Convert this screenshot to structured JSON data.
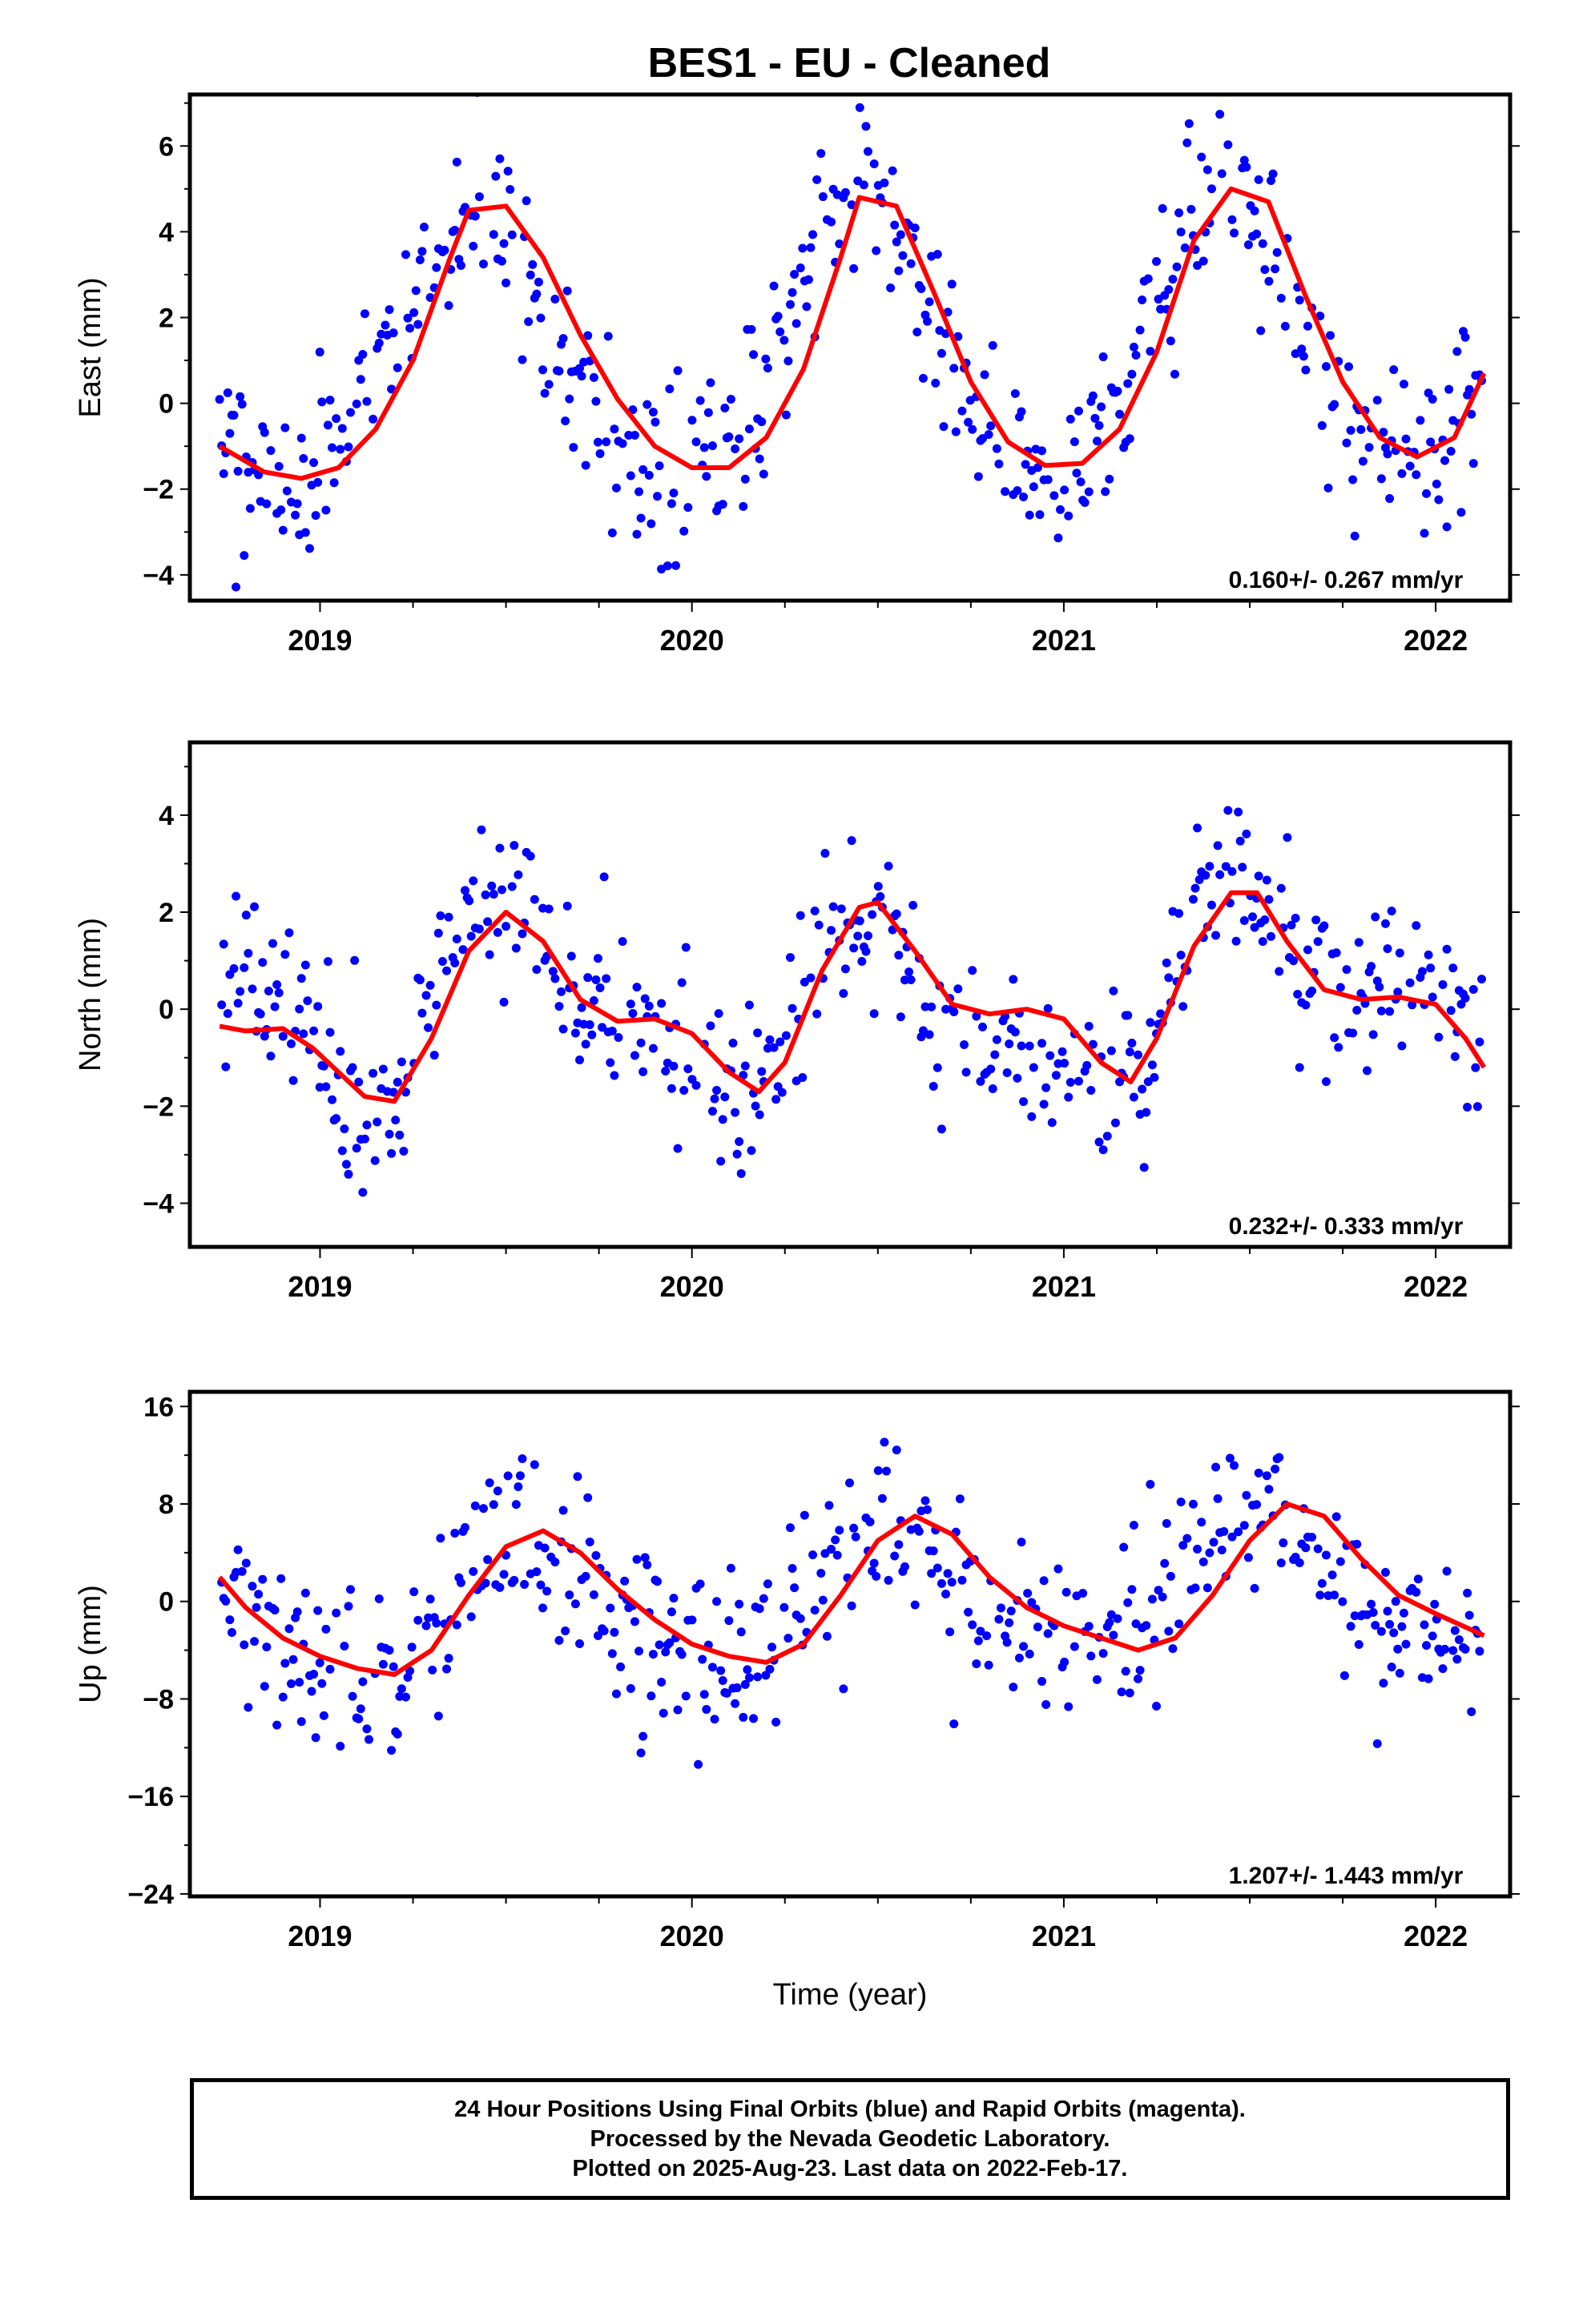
{
  "title": "BES1  - EU - Cleaned",
  "chart_data": [
    {
      "type": "scatter",
      "component": "east",
      "ylabel": "East (mm)",
      "xlabel": "",
      "xlim": [
        2018.65,
        2022.2
      ],
      "ylim": [
        -4.6,
        7.2
      ],
      "xticks": [
        2019,
        2020,
        2021,
        2022
      ],
      "xtick_labels": [
        "2019",
        "2020",
        "2021",
        "2022"
      ],
      "yticks": [
        -4,
        -2,
        0,
        2,
        4,
        6
      ],
      "ytick_labels": [
        "−4",
        "−2",
        "0",
        "2",
        "4",
        "6"
      ],
      "rate_label": "0.160+/- 0.267 mm/yr",
      "grid": false,
      "series": [
        {
          "name": "",
          "kind": "points",
          "color": "#0000ff",
          "note_points": "approximate envelope of daily positions",
          "x": [
            2018.73,
            2018.8,
            2018.88,
            2018.96,
            2019.04,
            2019.12,
            2019.21,
            2019.29,
            2019.37,
            2019.45,
            2019.54,
            2019.62,
            2019.7,
            2019.79,
            2019.87,
            2019.95,
            2020.04,
            2020.12,
            2020.2,
            2020.29,
            2020.37,
            2020.45,
            2020.54,
            2020.62,
            2020.7,
            2020.79,
            2020.87,
            2020.95,
            2021.04,
            2021.12,
            2021.21,
            2021.29,
            2021.37,
            2021.45,
            2021.54,
            2021.62,
            2021.7,
            2021.79,
            2021.87,
            2021.95,
            2022.04,
            2022.13
          ],
          "y": [
            -1.2,
            -1.6,
            -1.8,
            -1.7,
            -1.2,
            -0.3,
            1.0,
            2.8,
            4.4,
            4.6,
            3.3,
            1.6,
            0.2,
            -0.9,
            -1.4,
            -1.6,
            -1.5,
            -0.8,
            0.6,
            2.4,
            4.2,
            5.0,
            4.3,
            2.6,
            0.8,
            -0.5,
            -1.2,
            -1.5,
            -1.3,
            -0.4,
            1.1,
            3.1,
            4.6,
            5.1,
            4.0,
            2.3,
            0.7,
            -0.5,
            -1.1,
            -1.3,
            -1.0,
            0.4
          ]
        },
        {
          "name": "",
          "kind": "line",
          "color": "#ff0000",
          "x": [
            2018.73,
            2018.85,
            2018.95,
            2019.05,
            2019.15,
            2019.25,
            2019.35,
            2019.4,
            2019.5,
            2019.6,
            2019.7,
            2019.8,
            2019.9,
            2020.0,
            2020.1,
            2020.2,
            2020.3,
            2020.4,
            2020.45,
            2020.55,
            2020.65,
            2020.75,
            2020.85,
            2020.95,
            2021.05,
            2021.15,
            2021.25,
            2021.35,
            2021.45,
            2021.55,
            2021.65,
            2021.75,
            2021.85,
            2021.95,
            2022.05,
            2022.13
          ],
          "y": [
            -1.0,
            -1.6,
            -1.75,
            -1.5,
            -0.6,
            1.0,
            3.4,
            4.5,
            4.6,
            3.4,
            1.6,
            0.1,
            -1.0,
            -1.5,
            -1.5,
            -0.8,
            0.8,
            3.4,
            4.8,
            4.6,
            2.6,
            0.5,
            -0.9,
            -1.45,
            -1.4,
            -0.6,
            1.2,
            3.8,
            5.0,
            4.7,
            2.5,
            0.5,
            -0.8,
            -1.25,
            -0.8,
            0.7
          ]
        }
      ]
    },
    {
      "type": "scatter",
      "component": "north",
      "ylabel": "North (mm)",
      "xlabel": "",
      "xlim": [
        2018.65,
        2022.2
      ],
      "ylim": [
        -4.9,
        5.5
      ],
      "xticks": [
        2019,
        2020,
        2021,
        2022
      ],
      "xtick_labels": [
        "2019",
        "2020",
        "2021",
        "2022"
      ],
      "yticks": [
        -4,
        -2,
        0,
        2,
        4
      ],
      "ytick_labels": [
        "−4",
        "−2",
        "0",
        "2",
        "4"
      ],
      "rate_label": "0.232+/- 0.333 mm/yr",
      "grid": false,
      "series": [
        {
          "name": "",
          "kind": "points",
          "color": "#0000ff",
          "note_points": "approximate envelope of daily positions",
          "x": [
            2018.73,
            2018.8,
            2018.88,
            2018.96,
            2019.04,
            2019.12,
            2019.21,
            2019.29,
            2019.37,
            2019.45,
            2019.54,
            2019.62,
            2019.7,
            2019.79,
            2019.87,
            2019.95,
            2020.04,
            2020.12,
            2020.2,
            2020.29,
            2020.37,
            2020.45,
            2020.54,
            2020.62,
            2020.7,
            2020.79,
            2020.87,
            2020.95,
            2021.04,
            2021.12,
            2021.21,
            2021.29,
            2021.37,
            2021.45,
            2021.54,
            2021.62,
            2021.7,
            2021.79,
            2021.87,
            2021.95,
            2022.04,
            2022.13
          ],
          "y": [
            0.4,
            0.6,
            0.3,
            -0.6,
            -1.4,
            -2.2,
            -1.6,
            0.4,
            1.6,
            2.2,
            2.6,
            1.2,
            -0.2,
            -0.4,
            -0.2,
            -0.8,
            -1.4,
            -1.8,
            -1.2,
            0.4,
            1.6,
            1.9,
            1.6,
            0.2,
            -0.6,
            -0.9,
            -0.8,
            -0.9,
            -1.4,
            -1.8,
            -1.6,
            0.2,
            1.8,
            2.8,
            2.4,
            1.2,
            0.4,
            0.4,
            0.5,
            0.4,
            0.3,
            -1.0
          ]
        },
        {
          "name": "",
          "kind": "line",
          "color": "#ff0000",
          "x": [
            2018.73,
            2018.8,
            2018.9,
            2018.98,
            2019.05,
            2019.12,
            2019.2,
            2019.3,
            2019.4,
            2019.5,
            2019.6,
            2019.7,
            2019.8,
            2019.9,
            2020.0,
            2020.1,
            2020.18,
            2020.25,
            2020.35,
            2020.45,
            2020.5,
            2020.6,
            2020.7,
            2020.8,
            2020.9,
            2021.0,
            2021.1,
            2021.18,
            2021.25,
            2021.35,
            2021.45,
            2021.52,
            2021.6,
            2021.7,
            2021.8,
            2021.9,
            2022.0,
            2022.08,
            2022.13
          ],
          "y": [
            -0.35,
            -0.45,
            -0.4,
            -0.8,
            -1.3,
            -1.8,
            -1.9,
            -0.6,
            1.2,
            2.0,
            1.4,
            0.2,
            -0.25,
            -0.2,
            -0.5,
            -1.3,
            -1.7,
            -1.1,
            0.8,
            2.1,
            2.2,
            1.2,
            0.1,
            -0.1,
            0.0,
            -0.2,
            -1.1,
            -1.5,
            -0.6,
            1.3,
            2.4,
            2.4,
            1.4,
            0.4,
            0.2,
            0.25,
            0.1,
            -0.6,
            -1.2
          ]
        }
      ]
    },
    {
      "type": "scatter",
      "component": "up",
      "ylabel": "Up (mm)",
      "xlabel": "Time (year)",
      "xlim": [
        2018.65,
        2022.2
      ],
      "ylim": [
        -24.2,
        17.2
      ],
      "xticks": [
        2019,
        2020,
        2021,
        2022
      ],
      "xtick_labels": [
        "2019",
        "2020",
        "2021",
        "2022"
      ],
      "yticks": [
        -24,
        -16,
        -8,
        0,
        8,
        16
      ],
      "ytick_labels": [
        "−24",
        "−16",
        "−8",
        "0",
        "8",
        "16"
      ],
      "rate_label": "1.207+/- 1.443 mm/yr",
      "grid": false,
      "series": [
        {
          "name": "",
          "kind": "points",
          "color": "#0000ff",
          "note_points": "approximate envelope of daily positions",
          "x": [
            2018.73,
            2018.8,
            2018.88,
            2018.96,
            2019.04,
            2019.12,
            2019.21,
            2019.29,
            2019.37,
            2019.45,
            2019.54,
            2019.62,
            2019.7,
            2019.79,
            2019.87,
            2019.95,
            2020.04,
            2020.12,
            2020.2,
            2020.29,
            2020.37,
            2020.45,
            2020.54,
            2020.62,
            2020.7,
            2020.79,
            2020.87,
            2020.95,
            2021.04,
            2021.12,
            2021.21,
            2021.29,
            2021.37,
            2021.45,
            2021.54,
            2021.62,
            2021.7,
            2021.79,
            2021.87,
            2021.95,
            2022.04,
            2022.13
          ],
          "y": [
            1.0,
            -2.0,
            -4.0,
            -5.5,
            -6.5,
            -7.0,
            -6.0,
            -3.0,
            1.0,
            5.5,
            6.0,
            3.5,
            1.0,
            -1.5,
            -3.0,
            -4.0,
            -5.0,
            -5.5,
            -4.5,
            -1.0,
            3.0,
            6.5,
            6.5,
            4.5,
            1.5,
            -1.0,
            -2.0,
            -2.5,
            -3.0,
            -3.5,
            -3.5,
            -1.0,
            4.0,
            7.5,
            8.5,
            6.0,
            2.5,
            0.0,
            -1.5,
            -2.0,
            -2.5,
            -3.0
          ]
        },
        {
          "name": "",
          "kind": "line",
          "color": "#ff0000",
          "x": [
            2018.73,
            2018.8,
            2018.9,
            2019.0,
            2019.1,
            2019.2,
            2019.3,
            2019.4,
            2019.5,
            2019.6,
            2019.7,
            2019.8,
            2019.9,
            2020.0,
            2020.1,
            2020.2,
            2020.3,
            2020.4,
            2020.5,
            2020.6,
            2020.7,
            2020.8,
            2020.9,
            2021.0,
            2021.1,
            2021.2,
            2021.3,
            2021.4,
            2021.5,
            2021.6,
            2021.7,
            2021.8,
            2021.9,
            2022.0,
            2022.13
          ],
          "y": [
            2.0,
            -0.5,
            -3.0,
            -4.5,
            -5.5,
            -6.0,
            -4.0,
            0.5,
            4.5,
            5.8,
            4.0,
            1.0,
            -1.5,
            -3.5,
            -4.5,
            -5.0,
            -3.5,
            0.5,
            5.0,
            7.0,
            5.5,
            2.0,
            -0.5,
            -2.0,
            -3.0,
            -4.0,
            -3.0,
            0.5,
            5.0,
            8.0,
            7.0,
            3.5,
            0.5,
            -1.0,
            -2.8
          ]
        }
      ]
    }
  ],
  "footer": {
    "line1": "24 Hour Positions Using Final Orbits (blue) and Rapid Orbits (magenta).",
    "line2": "Processed by the Nevada Geodetic Laboratory.",
    "line3": "Plotted on 2025-Aug-23. Last data on 2022-Feb-17."
  }
}
